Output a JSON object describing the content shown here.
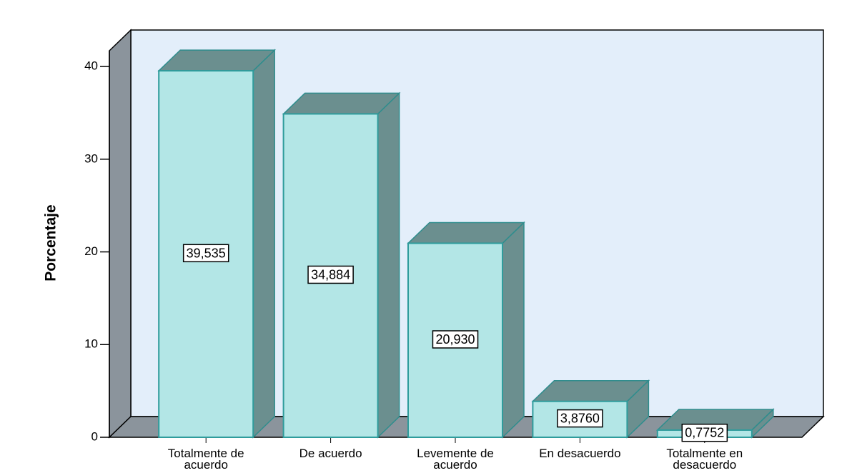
{
  "chart_data": {
    "type": "bar3d",
    "y_label": "Porcentaje",
    "categories": [
      "Totalmente de acuerdo",
      "De acuerdo",
      "Levemente de acuerdo",
      "En desacuerdo",
      "Totalmente en desacuerdo"
    ],
    "values": [
      39.535,
      34.884,
      20.93,
      3.876,
      0.7752
    ],
    "value_labels": [
      "39,535",
      "34,884",
      "20,930",
      "3,8760",
      "0,7752"
    ],
    "color": "#b3e6e6",
    "ylim": [
      0,
      41.7
    ],
    "yticks": [
      0,
      10,
      20,
      30,
      40
    ]
  }
}
